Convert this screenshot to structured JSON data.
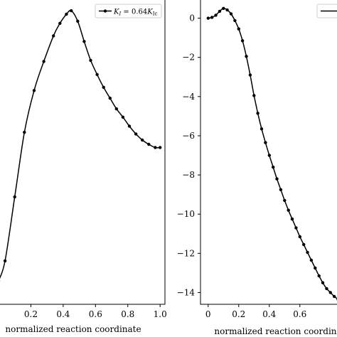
{
  "chart_data": [
    {
      "type": "line",
      "xlabel": "normalized reaction coordinate",
      "ylabel": "",
      "xlim": [
        0.0,
        1.03
      ],
      "x_ticks": [
        0.2,
        0.4,
        0.6,
        0.8,
        1.0
      ],
      "x_tick_labels": [
        "0.2",
        "0.4",
        "0.6",
        "0.8",
        "1.0"
      ],
      "ylim": [
        0.0,
        1.0
      ],
      "grid": false,
      "legend_position": "top-right",
      "series": [
        {
          "name": "K_I = 0.64K_Ic",
          "legend_label": {
            "K": "K",
            "sub1": "I",
            "eq": " = 0.64",
            "K2": "K",
            "sub2": "Ic"
          },
          "color": "#000000",
          "marker": "circle",
          "x": [
            0.0,
            0.04,
            0.1,
            0.16,
            0.22,
            0.28,
            0.34,
            0.38,
            0.42,
            0.45,
            0.49,
            0.53,
            0.57,
            0.61,
            0.65,
            0.69,
            0.73,
            0.77,
            0.81,
            0.85,
            0.89,
            0.93,
            0.97,
            1.0
          ],
          "y": [
            0.0,
            0.075,
            0.315,
            0.557,
            0.714,
            0.823,
            0.919,
            0.966,
            1.0,
            1.013,
            0.974,
            0.898,
            0.827,
            0.774,
            0.726,
            0.685,
            0.645,
            0.614,
            0.58,
            0.551,
            0.528,
            0.512,
            0.5,
            0.5
          ]
        }
      ]
    },
    {
      "type": "line",
      "xlabel": "normalized reaction coordinate",
      "ylabel": "",
      "xlim": [
        -0.05,
        0.88
      ],
      "ylim": [
        -14.6,
        1.0
      ],
      "x_ticks": [
        0,
        0.2,
        0.4,
        0.6
      ],
      "x_tick_labels": [
        "0",
        "0.2",
        "0.4",
        "0.6"
      ],
      "y_ticks": [
        0,
        -2,
        -4,
        -6,
        -8,
        -10,
        -12,
        -14
      ],
      "y_tick_labels": [
        "0",
        "−2",
        "−4",
        "−6",
        "−8",
        "−10",
        "−12",
        "−14"
      ],
      "grid": false,
      "legend_position": "top-right",
      "series": [
        {
          "name": "",
          "color": "#000000",
          "marker": "circle",
          "x": [
            0.0,
            0.025,
            0.05,
            0.075,
            0.1,
            0.125,
            0.15,
            0.175,
            0.2,
            0.225,
            0.25,
            0.275,
            0.3,
            0.325,
            0.35,
            0.375,
            0.4,
            0.425,
            0.45,
            0.475,
            0.5,
            0.525,
            0.55,
            0.575,
            0.6,
            0.625,
            0.65,
            0.675,
            0.7,
            0.725,
            0.75,
            0.775,
            0.8,
            0.825,
            0.85
          ],
          "y": [
            0.0,
            0.04,
            0.15,
            0.35,
            0.5,
            0.42,
            0.22,
            -0.12,
            -0.55,
            -1.15,
            -1.95,
            -2.9,
            -3.95,
            -4.85,
            -5.65,
            -6.35,
            -7.0,
            -7.6,
            -8.2,
            -8.75,
            -9.3,
            -9.8,
            -10.25,
            -10.7,
            -11.15,
            -11.55,
            -11.95,
            -12.35,
            -12.75,
            -13.15,
            -13.5,
            -13.8,
            -14.0,
            -14.2,
            -14.35
          ]
        }
      ]
    }
  ]
}
